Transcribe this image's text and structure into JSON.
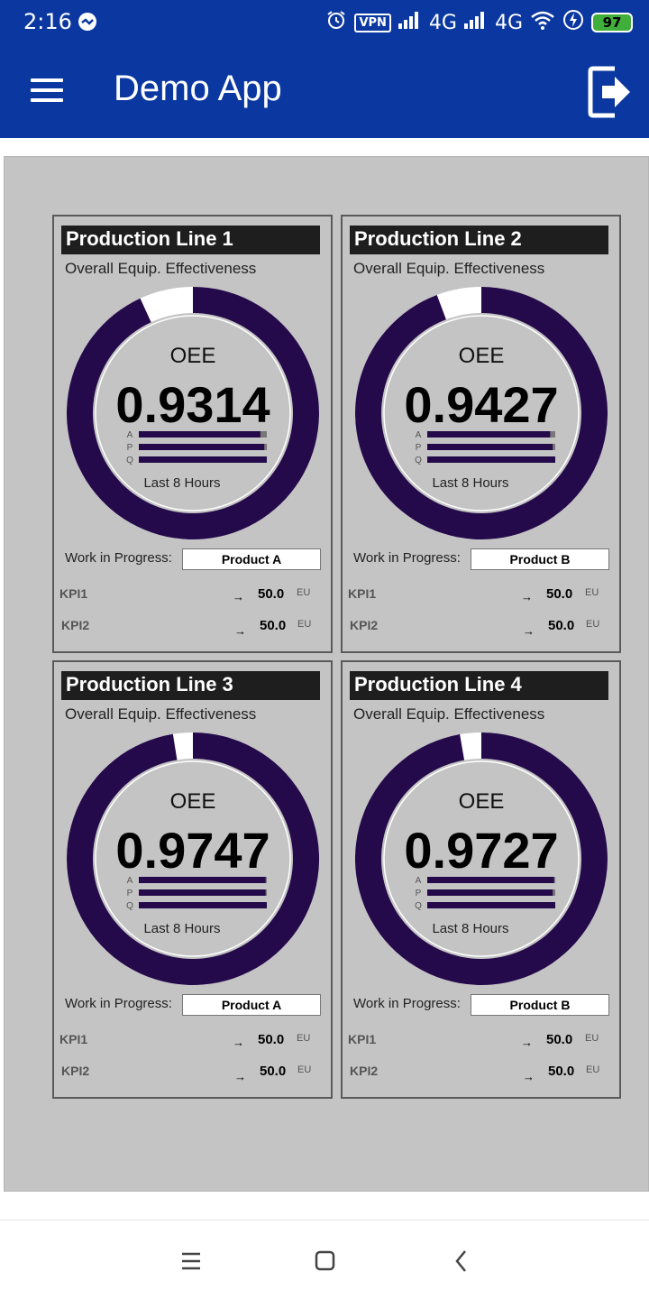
{
  "status_bar": {
    "time": "2:16",
    "vpn": "VPN",
    "net1": "4G",
    "net2": "4G",
    "battery": "97"
  },
  "app_bar": {
    "title": "Demo App"
  },
  "colors": {
    "bar": "#0a37a0",
    "gauge": "#240a4a",
    "bg": "#c4c4c4"
  },
  "labels": {
    "subtitle": "Overall Equip. Effectiveness",
    "oee": "OEE",
    "period": "Last 8 Hours",
    "apq": [
      "A",
      "P",
      "Q"
    ],
    "wip": "Work in Progress:",
    "kpi1": "KPI1",
    "kpi2": "KPI2",
    "unit": "EU"
  },
  "panels": [
    {
      "title": "Production Line 1",
      "oee": "0.9314",
      "oee_value": 0.9314,
      "apq": [
        0.95,
        0.98,
        1.0
      ],
      "wip": "Product A",
      "kpi1": "50.0",
      "kpi2": "50.0"
    },
    {
      "title": "Production Line 2",
      "oee": "0.9427",
      "oee_value": 0.9427,
      "apq": [
        0.96,
        0.98,
        1.0
      ],
      "wip": "Product B",
      "kpi1": "50.0",
      "kpi2": "50.0"
    },
    {
      "title": "Production Line 3",
      "oee": "0.9747",
      "oee_value": 0.9747,
      "apq": [
        0.99,
        0.99,
        1.0
      ],
      "wip": "Product A",
      "kpi1": "50.0",
      "kpi2": "50.0"
    },
    {
      "title": "Production Line 4",
      "oee": "0.9727",
      "oee_value": 0.9727,
      "apq": [
        0.99,
        0.98,
        1.0
      ],
      "wip": "Product B",
      "kpi1": "50.0",
      "kpi2": "50.0"
    }
  ]
}
